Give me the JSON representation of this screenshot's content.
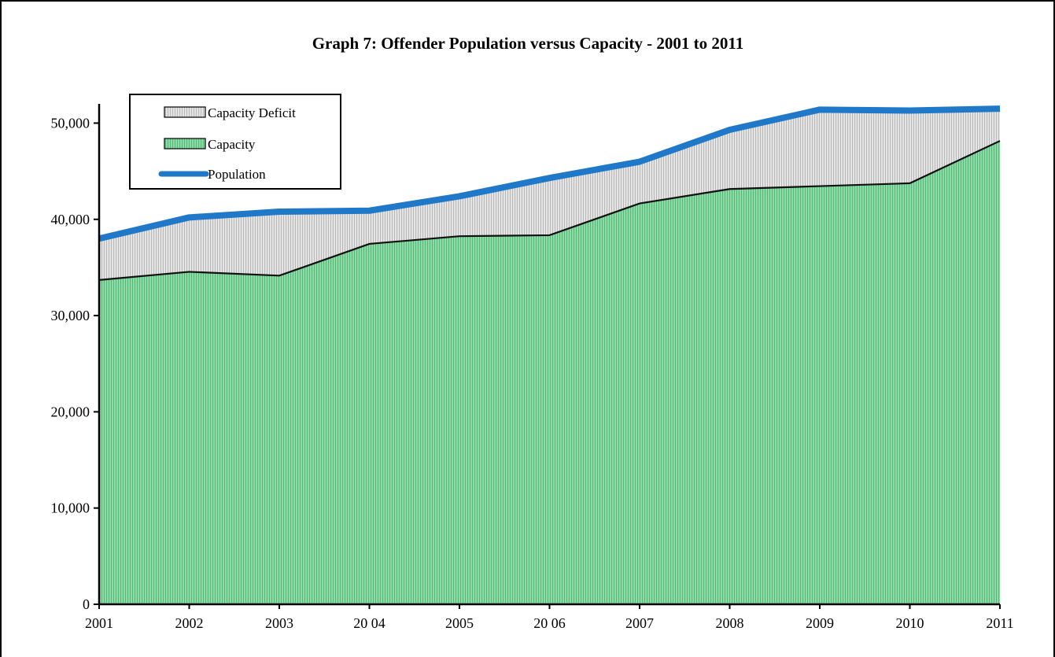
{
  "chart_data": {
    "type": "area",
    "title": "Graph  7:  Offender Population versus Capacity - 2001 to 2011",
    "xlabel": "",
    "ylabel": "",
    "x": [
      2001,
      2002,
      2003,
      2004,
      2005,
      2006,
      2007,
      2008,
      2009,
      2010,
      2011
    ],
    "x_tick_labels": [
      "2001",
      "2002",
      "2003",
      "20 04",
      "2005",
      "20 06",
      "2007",
      "2008",
      "2009",
      "2010",
      "2011"
    ],
    "ylim": [
      0,
      52000
    ],
    "y_ticks": [
      0,
      10000,
      20000,
      30000,
      40000,
      50000
    ],
    "y_tick_labels": [
      "0",
      "10,000",
      "20,000",
      "30,000",
      "40,000",
      "50,000"
    ],
    "series": [
      {
        "name": "Capacity Deficit",
        "kind": "stacked-area",
        "color": "#d9d9d9",
        "values": [
          4300,
          5650,
          6650,
          3450,
          4150,
          5950,
          4350,
          6150,
          7950,
          7550,
          3350
        ]
      },
      {
        "name": "Capacity",
        "kind": "area",
        "color": "#7fd39b",
        "values": [
          33700,
          34550,
          34150,
          37450,
          38250,
          38350,
          41650,
          43150,
          43450,
          43750,
          48150
        ]
      },
      {
        "name": "Population",
        "kind": "line",
        "color": "#1f78c8",
        "values": [
          38000,
          40200,
          40800,
          40900,
          42400,
          44300,
          45990,
          49300,
          51400,
          51300,
          51500
        ]
      }
    ],
    "legend": {
      "position": "top-left",
      "items": [
        "Capacity Deficit",
        "Capacity",
        "Population"
      ]
    },
    "grid": false
  }
}
